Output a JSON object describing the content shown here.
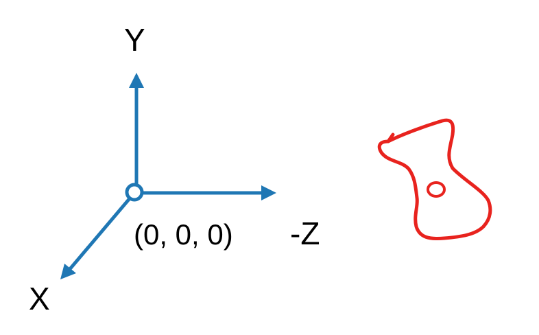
{
  "colors": {
    "axis": "#1f77b4",
    "object": "#e8231e",
    "text": "#000000",
    "background": "#ffffff"
  },
  "labels": {
    "y_axis": "Y",
    "x_axis": "X",
    "z_axis": "-Z",
    "origin": "(0, 0, 0)"
  },
  "icons": {
    "object": "irregular-closed-curve-icon"
  }
}
